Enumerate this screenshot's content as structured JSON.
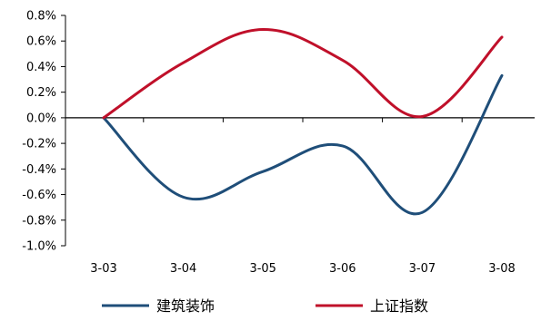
{
  "chart_data": {
    "type": "line",
    "title": "",
    "xlabel": "",
    "ylabel": "",
    "categories": [
      "3-03",
      "3-04",
      "3-05",
      "3-06",
      "3-07",
      "3-08"
    ],
    "ylim": [
      -1.0,
      0.8
    ],
    "yticks": [
      0.8,
      0.6,
      0.4,
      0.2,
      0.0,
      -0.2,
      -0.4,
      -0.6,
      -0.8,
      -1.0
    ],
    "ytick_labels": [
      "0.8%",
      "0.6%",
      "0.4%",
      "0.2%",
      "0.0%",
      "-0.2%",
      "-0.4%",
      "-0.6%",
      "-0.8%",
      "-1.0%"
    ],
    "grid": false,
    "legend_position": "bottom",
    "series": [
      {
        "name": "建筑装饰",
        "color": "#1f4e79",
        "values": [
          0.0,
          -0.62,
          -0.42,
          -0.22,
          -0.74,
          0.33
        ]
      },
      {
        "name": "上证指数",
        "color": "#c0102a",
        "values": [
          0.0,
          0.43,
          0.69,
          0.45,
          0.01,
          0.63
        ]
      }
    ]
  }
}
